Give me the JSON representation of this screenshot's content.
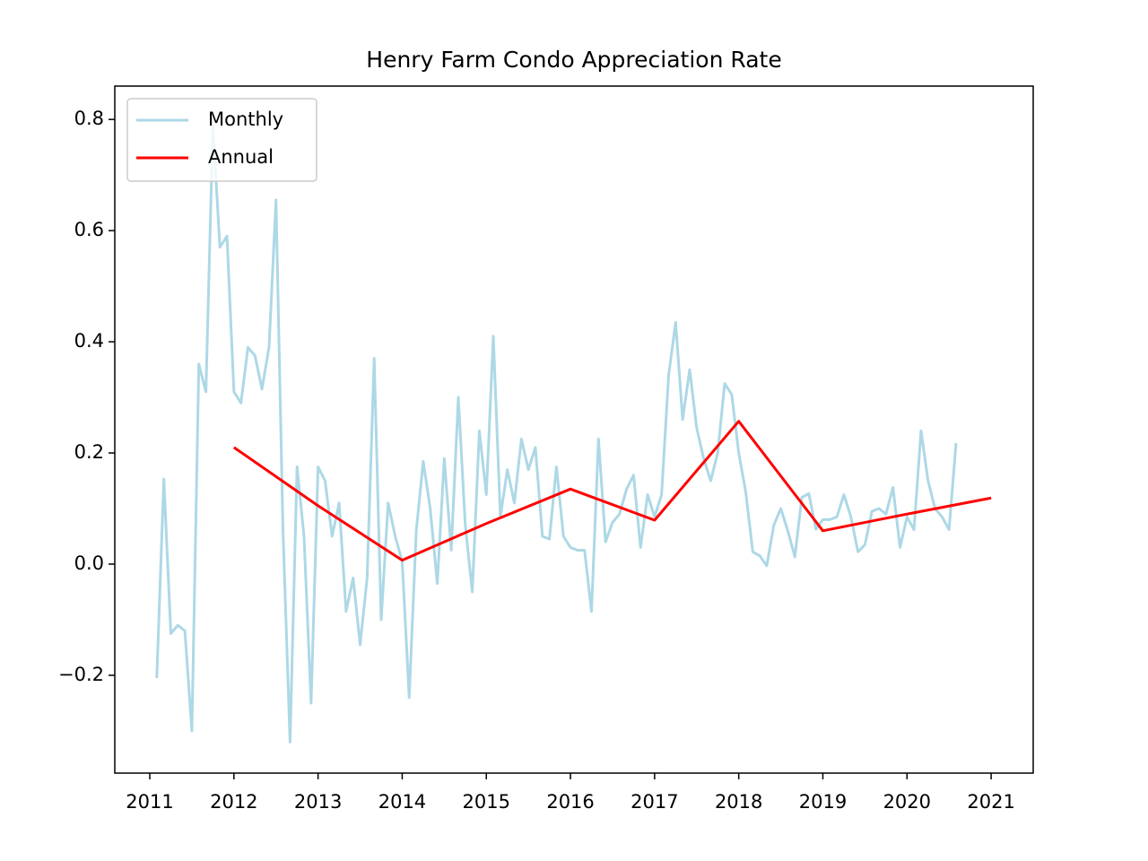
{
  "chart_data": {
    "type": "line",
    "title": "Henry Farm Condo Appreciation Rate",
    "legend": "upper left",
    "xlim": [
      2010.584,
      2021.5
    ],
    "ylim": [
      -0.376,
      0.86
    ],
    "xticks": [
      2011,
      2012,
      2013,
      2014,
      2015,
      2016,
      2017,
      2018,
      2019,
      2020,
      2021
    ],
    "yticks": [
      {
        "value": -0.2,
        "label": "−0.2"
      },
      {
        "value": 0,
        "label": "0.0"
      },
      0.2,
      0.4,
      0.6,
      0.8
    ],
    "series": [
      {
        "name": "Monthly",
        "color": "#add8e6",
        "x": [
          2011.083,
          2011.167,
          2011.25,
          2011.333,
          2011.417,
          2011.5,
          2011.583,
          2011.667,
          2011.75,
          2011.833,
          2011.917,
          2012,
          2012.083,
          2012.167,
          2012.25,
          2012.333,
          2012.417,
          2012.5,
          2012.583,
          2012.667,
          2012.75,
          2012.833,
          2012.917,
          2013,
          2013.083,
          2013.167,
          2013.25,
          2013.333,
          2013.417,
          2013.5,
          2013.583,
          2013.667,
          2013.75,
          2013.833,
          2013.917,
          2014,
          2014.083,
          2014.167,
          2014.25,
          2014.333,
          2014.417,
          2014.5,
          2014.583,
          2014.667,
          2014.75,
          2014.833,
          2014.917,
          2015,
          2015.083,
          2015.167,
          2015.25,
          2015.333,
          2015.417,
          2015.5,
          2015.583,
          2015.667,
          2015.75,
          2015.833,
          2015.917,
          2016,
          2016.083,
          2016.167,
          2016.25,
          2016.333,
          2016.417,
          2016.5,
          2016.583,
          2016.667,
          2016.75,
          2016.833,
          2016.917,
          2017,
          2017.083,
          2017.167,
          2017.25,
          2017.333,
          2017.417,
          2017.5,
          2017.583,
          2017.667,
          2017.75,
          2017.833,
          2017.917,
          2018,
          2018.083,
          2018.167,
          2018.25,
          2018.333,
          2018.417,
          2018.5,
          2018.583,
          2018.667,
          2018.75,
          2018.833,
          2018.917,
          2019,
          2019.083,
          2019.167,
          2019.25,
          2019.333,
          2019.417,
          2019.5,
          2019.583,
          2019.667,
          2019.75,
          2019.833,
          2019.917,
          2020,
          2020.083,
          2020.167,
          2020.25,
          2020.333,
          2020.417,
          2020.5,
          2020.583
        ],
        "values": [
          -0.205,
          0.153,
          -0.125,
          -0.11,
          -0.12,
          -0.3,
          0.36,
          0.31,
          0.79,
          0.57,
          0.59,
          0.31,
          0.29,
          0.39,
          0.375,
          0.315,
          0.39,
          0.655,
          0.06,
          -0.32,
          0.175,
          0.05,
          -0.25,
          0.175,
          0.15,
          0.05,
          0.11,
          -0.085,
          -0.025,
          -0.145,
          -0.025,
          0.37,
          -0.1,
          0.11,
          0.05,
          0.005,
          -0.24,
          0.06,
          0.185,
          0.1,
          -0.035,
          0.19,
          0.025,
          0.3,
          0.07,
          -0.05,
          0.24,
          0.125,
          0.41,
          0.085,
          0.17,
          0.11,
          0.225,
          0.17,
          0.21,
          0.05,
          0.045,
          0.175,
          0.05,
          0.03,
          0.025,
          0.025,
          -0.085,
          0.225,
          0.04,
          0.075,
          0.09,
          0.135,
          0.16,
          0.03,
          0.125,
          0.085,
          0.125,
          0.34,
          0.435,
          0.26,
          0.35,
          0.245,
          0.19,
          0.15,
          0.2,
          0.325,
          0.305,
          0.2,
          0.13,
          0.022,
          0.015,
          -0.003,
          0.07,
          0.1,
          0.06,
          0.013,
          0.12,
          0.127,
          0.063,
          0.08,
          0.08,
          0.085,
          0.125,
          0.085,
          0.022,
          0.035,
          0.095,
          0.1,
          0.09,
          0.138,
          0.03,
          0.085,
          0.062,
          0.24,
          0.15,
          0.1,
          0.085,
          0.062,
          0.218
        ]
      },
      {
        "name": "Annual",
        "color": "#ff0000",
        "x": [
          2012,
          2013,
          2014,
          2015,
          2016,
          2017,
          2018,
          2019,
          2020,
          2021
        ],
        "values": [
          0.21,
          0.105,
          0.007,
          0.073,
          0.135,
          0.079,
          0.257,
          0.06,
          0.09,
          0.119
        ]
      }
    ]
  }
}
